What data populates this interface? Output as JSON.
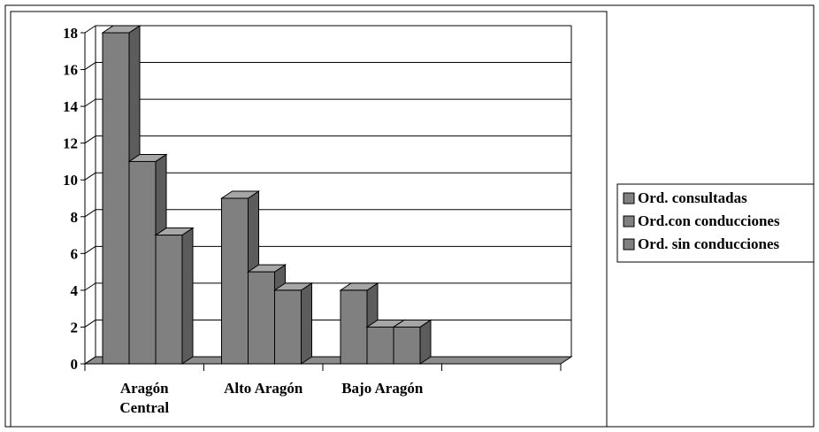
{
  "chart_data": {
    "type": "bar",
    "categories": [
      [
        "Aragón",
        "Central"
      ],
      [
        "Alto Aragón"
      ],
      [
        "Bajo Aragón"
      ],
      [
        ""
      ]
    ],
    "series": [
      {
        "name": "Ord. consultadas",
        "values": [
          18,
          9,
          4,
          null
        ]
      },
      {
        "name": "Ord.con conducciones",
        "values": [
          11,
          5,
          2,
          null
        ]
      },
      {
        "name": "Ord. sin conducciones",
        "values": [
          7,
          4,
          2,
          null
        ]
      }
    ],
    "ylim": [
      0,
      18
    ],
    "yticks": [
      0,
      2,
      4,
      6,
      8,
      10,
      12,
      14,
      16,
      18
    ],
    "grid": true,
    "three_d": true,
    "legend_position": "right",
    "colors": {
      "bar_front": "#808080",
      "bar_top": "#a6a6a6",
      "bar_side": "#5c5c5c",
      "floor": "#8c8c8c",
      "gridline": "#000000",
      "border": "#000000"
    }
  }
}
